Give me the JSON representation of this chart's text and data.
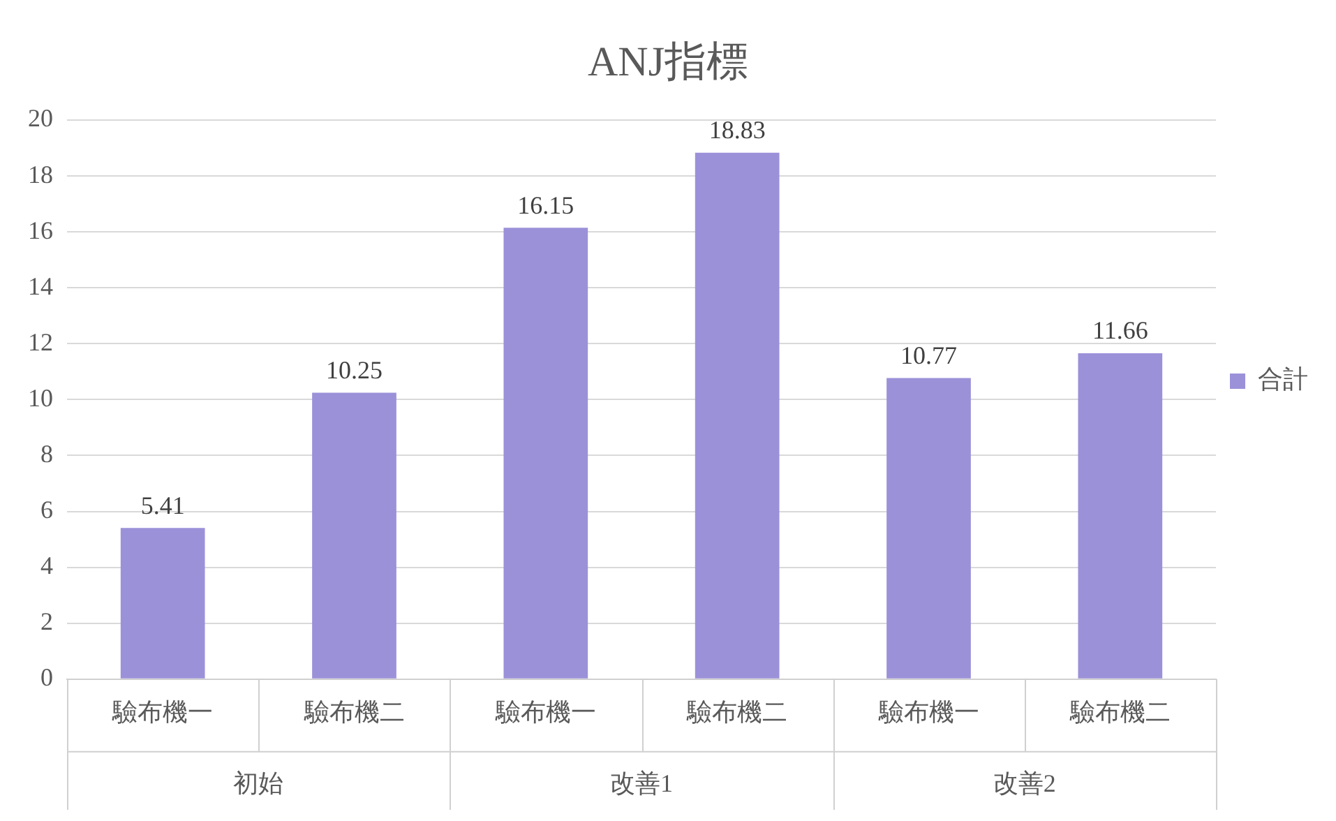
{
  "chart_data": {
    "type": "bar",
    "title": "ANJ指標",
    "categories": [
      "驗布機一",
      "驗布機二",
      "驗布機一",
      "驗布機二",
      "驗布機一",
      "驗布機二"
    ],
    "series": [
      {
        "name": "合計",
        "color": "#9b91d9",
        "values": [
          5.41,
          10.25,
          16.15,
          18.83,
          10.77,
          11.66
        ]
      }
    ],
    "ylim": [
      0,
      20
    ],
    "yticks": [
      0,
      2,
      4,
      6,
      8,
      10,
      12,
      14,
      16,
      18,
      20
    ],
    "grid": "y",
    "legend": "right",
    "data_labels": true,
    "annotations": [
      "初始",
      "改善1",
      "改善2"
    ]
  }
}
